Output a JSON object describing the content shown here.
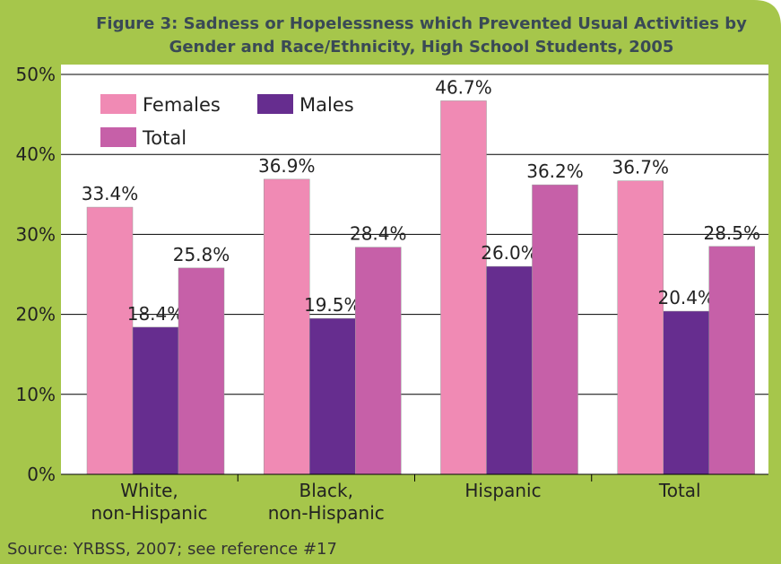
{
  "chart_data": {
    "type": "bar",
    "title": [
      "Figure 3: Sadness or Hopelessness which Prevented Usual Activities by",
      "Gender and Race/Ethnicity, High School Students, 2005"
    ],
    "categories": [
      "White,\nnon-Hispanic",
      "Black,\nnon-Hispanic",
      "Hispanic",
      "Total"
    ],
    "series": [
      {
        "name": "Females",
        "color": "#f08ab4",
        "values": [
          33.4,
          36.9,
          46.7,
          36.7
        ],
        "value_labels": [
          "33.4%",
          "36.9%",
          "46.7%",
          "36.7%"
        ]
      },
      {
        "name": "Males",
        "color": "#662d8f",
        "values": [
          18.4,
          19.5,
          26.0,
          20.4
        ],
        "value_labels": [
          "18.4%",
          "19.5%",
          "26.0%",
          "20.4%"
        ]
      },
      {
        "name": "Total",
        "color": "#c660a8",
        "values": [
          25.8,
          28.4,
          36.2,
          28.5
        ],
        "value_labels": [
          "25.8%",
          "28.4%",
          "36.2%",
          "28.5%"
        ]
      }
    ],
    "ylim": [
      0,
      50
    ],
    "yticks": [
      {
        "value": 0,
        "label": "0%"
      },
      {
        "value": 10,
        "label": "10%"
      },
      {
        "value": 20,
        "label": "20%"
      },
      {
        "value": 30,
        "label": "30%"
      },
      {
        "value": 40,
        "label": "40%"
      },
      {
        "value": 50,
        "label": "50%"
      }
    ],
    "grid": true,
    "source": "Source: YRBSS, 2007; see reference #17"
  }
}
